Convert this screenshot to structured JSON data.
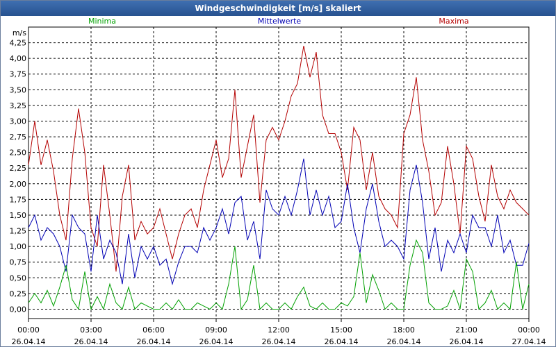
{
  "window": {
    "title": "Windgeschwindigkeit [m/s] skaliert"
  },
  "chart_data": {
    "type": "line",
    "title": "Windgeschwindigkeit [m/s] skaliert",
    "ylabel": "m/s",
    "xlabel": "",
    "ylim": [
      -0.15,
      4.5
    ],
    "xlim": [
      0,
      24
    ],
    "grid": true,
    "y_ticks": [
      "0,00",
      "0,25",
      "0,50",
      "0,75",
      "1,00",
      "1,25",
      "1,50",
      "1,75",
      "2,00",
      "2,25",
      "2,50",
      "2,75",
      "3,00",
      "3,25",
      "3,50",
      "3,75",
      "4,00",
      "4,25"
    ],
    "x_ticks": [
      {
        "time": "00:00",
        "date": "26.04.14"
      },
      {
        "time": "03:00",
        "date": "26.04.14"
      },
      {
        "time": "06:00",
        "date": "26.04.14"
      },
      {
        "time": "09:00",
        "date": "26.04.14"
      },
      {
        "time": "12:00",
        "date": "26.04.14"
      },
      {
        "time": "15:00",
        "date": "26.04.14"
      },
      {
        "time": "18:00",
        "date": "26.04.14"
      },
      {
        "time": "21:00",
        "date": "26.04.14"
      },
      {
        "time": "00:00",
        "date": "27.04.14"
      }
    ],
    "legend": [
      "Minima",
      "Mittelwerte",
      "Maxima"
    ],
    "series": [
      {
        "name": "Minima",
        "color": "#00a000",
        "x": [
          0,
          0.3,
          0.6,
          0.9,
          1.2,
          1.5,
          1.8,
          2.1,
          2.4,
          2.7,
          3,
          3.3,
          3.6,
          3.9,
          4.2,
          4.5,
          4.8,
          5.1,
          5.4,
          5.7,
          6,
          6.3,
          6.6,
          6.9,
          7.2,
          7.5,
          7.8,
          8.1,
          8.4,
          8.7,
          9,
          9.3,
          9.6,
          9.9,
          10.2,
          10.5,
          10.8,
          11.1,
          11.4,
          11.7,
          12,
          12.3,
          12.6,
          12.9,
          13.2,
          13.5,
          13.8,
          14.1,
          14.4,
          14.7,
          15,
          15.3,
          15.6,
          15.9,
          16.2,
          16.5,
          16.8,
          17.1,
          17.4,
          17.7,
          18,
          18.3,
          18.6,
          18.9,
          19.2,
          19.5,
          19.8,
          20.1,
          20.4,
          20.7,
          21,
          21.3,
          21.6,
          21.9,
          22.2,
          22.5,
          22.8,
          23.1,
          23.4,
          23.7,
          24
        ],
        "values": [
          0.1,
          0.25,
          0.1,
          0.3,
          0.05,
          0.35,
          0.7,
          0.15,
          0.0,
          0.6,
          0.0,
          0.2,
          0.0,
          0.4,
          0.1,
          0.0,
          0.35,
          0.0,
          0.1,
          0.05,
          0.0,
          0.0,
          0.1,
          0.0,
          0.15,
          0.0,
          0.0,
          0.1,
          0.05,
          0.0,
          0.1,
          0.0,
          0.4,
          1.0,
          0.0,
          0.15,
          0.7,
          0.0,
          0.1,
          0.0,
          0.0,
          0.1,
          0.0,
          0.2,
          0.35,
          0.05,
          0.0,
          0.1,
          0.0,
          0.0,
          0.1,
          0.05,
          0.2,
          0.9,
          0.1,
          0.55,
          0.3,
          0.0,
          0.1,
          0.0,
          0.0,
          0.7,
          1.1,
          0.9,
          0.1,
          0.0,
          0.0,
          0.05,
          0.3,
          0.0,
          0.8,
          0.6,
          0.0,
          0.1,
          0.3,
          0.0,
          0.1,
          0.0,
          0.75,
          0.0,
          0.4
        ]
      },
      {
        "name": "Mittelwerte",
        "color": "#0000b4",
        "x": [
          0,
          0.3,
          0.6,
          0.9,
          1.2,
          1.5,
          1.8,
          2.1,
          2.4,
          2.7,
          3,
          3.3,
          3.6,
          3.9,
          4.2,
          4.5,
          4.8,
          5.1,
          5.4,
          5.7,
          6,
          6.3,
          6.6,
          6.9,
          7.2,
          7.5,
          7.8,
          8.1,
          8.4,
          8.7,
          9,
          9.3,
          9.6,
          9.9,
          10.2,
          10.5,
          10.8,
          11.1,
          11.4,
          11.7,
          12,
          12.3,
          12.6,
          12.9,
          13.2,
          13.5,
          13.8,
          14.1,
          14.4,
          14.7,
          15,
          15.3,
          15.6,
          15.9,
          16.2,
          16.5,
          16.8,
          17.1,
          17.4,
          17.7,
          18,
          18.3,
          18.6,
          18.9,
          19.2,
          19.5,
          19.8,
          20.1,
          20.4,
          20.7,
          21,
          21.3,
          21.6,
          21.9,
          22.2,
          22.5,
          22.8,
          23.1,
          23.4,
          23.7,
          24
        ],
        "values": [
          1.3,
          1.5,
          1.1,
          1.3,
          1.2,
          1.0,
          0.6,
          1.5,
          1.3,
          1.2,
          0.6,
          1.5,
          0.8,
          1.1,
          0.9,
          0.4,
          1.2,
          0.5,
          1.0,
          0.8,
          1.0,
          0.7,
          0.8,
          0.4,
          0.75,
          1.0,
          1.0,
          0.9,
          1.3,
          1.1,
          1.3,
          1.6,
          1.2,
          1.7,
          1.8,
          1.1,
          1.4,
          0.8,
          1.9,
          1.6,
          1.5,
          1.8,
          1.5,
          1.9,
          2.4,
          1.5,
          1.9,
          1.5,
          1.8,
          1.3,
          1.4,
          2.0,
          1.3,
          0.9,
          1.6,
          2.0,
          1.4,
          1.0,
          1.1,
          1.0,
          0.8,
          1.9,
          2.3,
          1.7,
          0.8,
          1.3,
          0.6,
          1.1,
          0.9,
          1.2,
          0.9,
          1.5,
          1.3,
          1.3,
          1.0,
          1.5,
          0.9,
          1.1,
          0.7,
          0.7,
          1.05
        ]
      },
      {
        "name": "Maxima",
        "color": "#b40000",
        "x": [
          0,
          0.3,
          0.6,
          0.9,
          1.2,
          1.5,
          1.8,
          2.1,
          2.4,
          2.7,
          3,
          3.3,
          3.6,
          3.9,
          4.2,
          4.5,
          4.8,
          5.1,
          5.4,
          5.7,
          6,
          6.3,
          6.6,
          6.9,
          7.2,
          7.5,
          7.8,
          8.1,
          8.4,
          8.7,
          9,
          9.3,
          9.6,
          9.9,
          10.2,
          10.5,
          10.8,
          11.1,
          11.4,
          11.7,
          12,
          12.3,
          12.6,
          12.9,
          13.2,
          13.5,
          13.8,
          14.1,
          14.4,
          14.7,
          15,
          15.3,
          15.6,
          15.9,
          16.2,
          16.5,
          16.8,
          17.1,
          17.4,
          17.7,
          18,
          18.3,
          18.6,
          18.9,
          19.2,
          19.5,
          19.8,
          20.1,
          20.4,
          20.7,
          21,
          21.3,
          21.6,
          21.9,
          22.2,
          22.5,
          22.8,
          23.1,
          23.4,
          23.7,
          24
        ],
        "values": [
          2.3,
          3.0,
          2.3,
          2.7,
          2.2,
          1.5,
          1.1,
          2.4,
          3.2,
          2.5,
          1.3,
          1.0,
          2.3,
          1.5,
          0.6,
          1.8,
          2.3,
          1.1,
          1.4,
          1.2,
          1.3,
          1.6,
          1.2,
          0.8,
          1.2,
          1.5,
          1.6,
          1.3,
          1.9,
          2.3,
          2.7,
          2.1,
          2.4,
          3.5,
          2.1,
          2.6,
          3.1,
          1.7,
          2.7,
          2.9,
          2.7,
          3.0,
          3.4,
          3.6,
          4.2,
          3.7,
          4.1,
          3.1,
          2.8,
          2.8,
          2.5,
          1.9,
          2.9,
          2.7,
          1.9,
          2.5,
          1.8,
          1.6,
          1.5,
          1.3,
          2.8,
          3.1,
          3.7,
          2.7,
          2.2,
          1.5,
          1.7,
          2.6,
          2.0,
          1.2,
          2.6,
          2.4,
          1.8,
          1.4,
          2.3,
          1.8,
          1.6,
          1.9,
          1.7,
          1.6,
          1.5
        ]
      }
    ]
  }
}
